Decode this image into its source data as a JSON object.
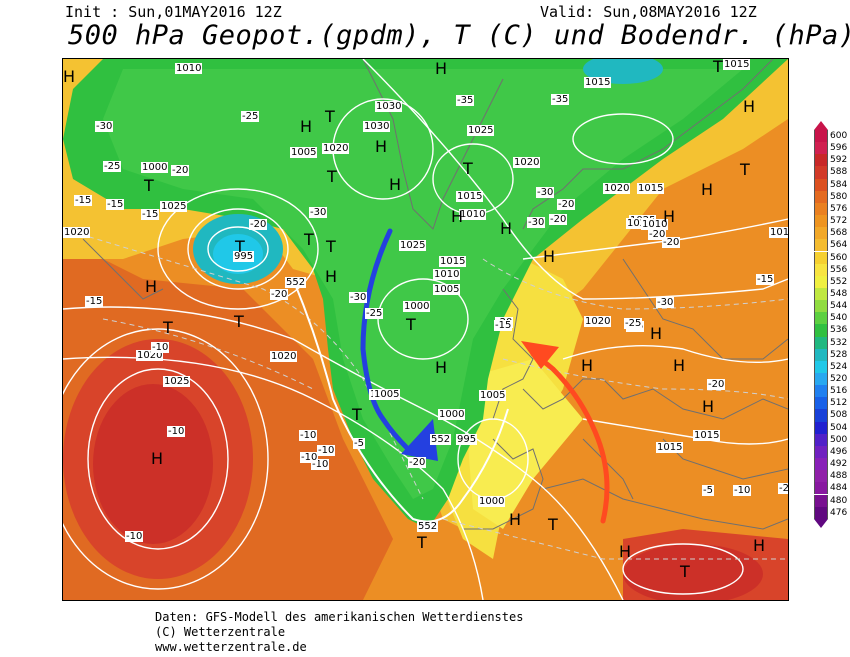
{
  "header": {
    "init": "Init : Sun,01MAY2016 12Z",
    "valid": "Valid: Sun,08MAY2016 12Z",
    "title": "500 hPa Geopot.(gpdm), T (C) und Bodendr. (hPa)"
  },
  "footer": [
    "Daten: GFS-Modell des amerikanischen Wetterdienstes",
    "(C) Wetterzentrale",
    "www.wetterzentrale.de"
  ],
  "legend": {
    "values": [
      "600",
      "596",
      "592",
      "588",
      "584",
      "580",
      "576",
      "572",
      "568",
      "564",
      "560",
      "556",
      "552",
      "548",
      "544",
      "540",
      "536",
      "532",
      "528",
      "524",
      "520",
      "516",
      "512",
      "508",
      "504",
      "500",
      "496",
      "492",
      "488",
      "484",
      "480",
      "476"
    ],
    "colors": [
      "#c8144a",
      "#d02050",
      "#c82828",
      "#d23a28",
      "#dc5020",
      "#e46a20",
      "#ea8020",
      "#ee9420",
      "#f2a828",
      "#f4bc30",
      "#f6d030",
      "#f8e440",
      "#f0f040",
      "#c0e840",
      "#90dc40",
      "#5cd040",
      "#30c040",
      "#20b880",
      "#20b8c0",
      "#20c8e8",
      "#28a8f0",
      "#2080f0",
      "#1860e8",
      "#1840d8",
      "#2020d0",
      "#5020c8",
      "#7020c0",
      "#8820b8",
      "#9020a8",
      "#8818a0",
      "#781090",
      "#600880"
    ],
    "colors_note_hidden": ""
  },
  "map": {
    "pressure_labels": [
      "1010",
      "1015",
      "1030",
      "1030",
      "1025",
      "1015",
      "1010",
      "1005",
      "1000",
      "995",
      "1020",
      "1015",
      "1020",
      "1025",
      "1020",
      "1020",
      "1010",
      "1025",
      "1015",
      "1010",
      "1005",
      "1000",
      "1020",
      "1010",
      "1020",
      "1025",
      "1020",
      "1005",
      "1000",
      "995",
      "1000",
      "1015",
      "1015",
      "1005",
      "1025",
      "1005",
      "1020",
      "1015"
    ],
    "temp_labels": [
      "-30",
      "-25",
      "-35",
      "-25",
      "-20",
      "-30",
      "-15",
      "-15",
      "-15",
      "-20",
      "-35",
      "-20",
      "-30",
      "-30",
      "-30",
      "-25",
      "-20",
      "-20",
      "-25",
      "-20",
      "-15",
      "-20",
      "-25",
      "-20",
      "-15",
      "-10",
      "-10",
      "-10",
      "-10",
      "-10",
      "-10",
      "-10",
      "-5",
      "-20",
      "-30",
      "-20",
      "-15",
      "-10",
      "-5",
      "-20"
    ],
    "height_labels": [
      "552",
      "552",
      "552"
    ],
    "highs": [
      "H",
      "H",
      "H",
      "H",
      "H",
      "H",
      "H",
      "H",
      "H",
      "H",
      "H",
      "H",
      "H",
      "H",
      "H",
      "H",
      "H",
      "H",
      "H",
      "H",
      "H",
      "H"
    ],
    "lows": [
      "T",
      "T",
      "T",
      "T",
      "T",
      "T",
      "T",
      "T",
      "T",
      "T",
      "T",
      "T",
      "T",
      "T",
      "T",
      "T"
    ]
  }
}
